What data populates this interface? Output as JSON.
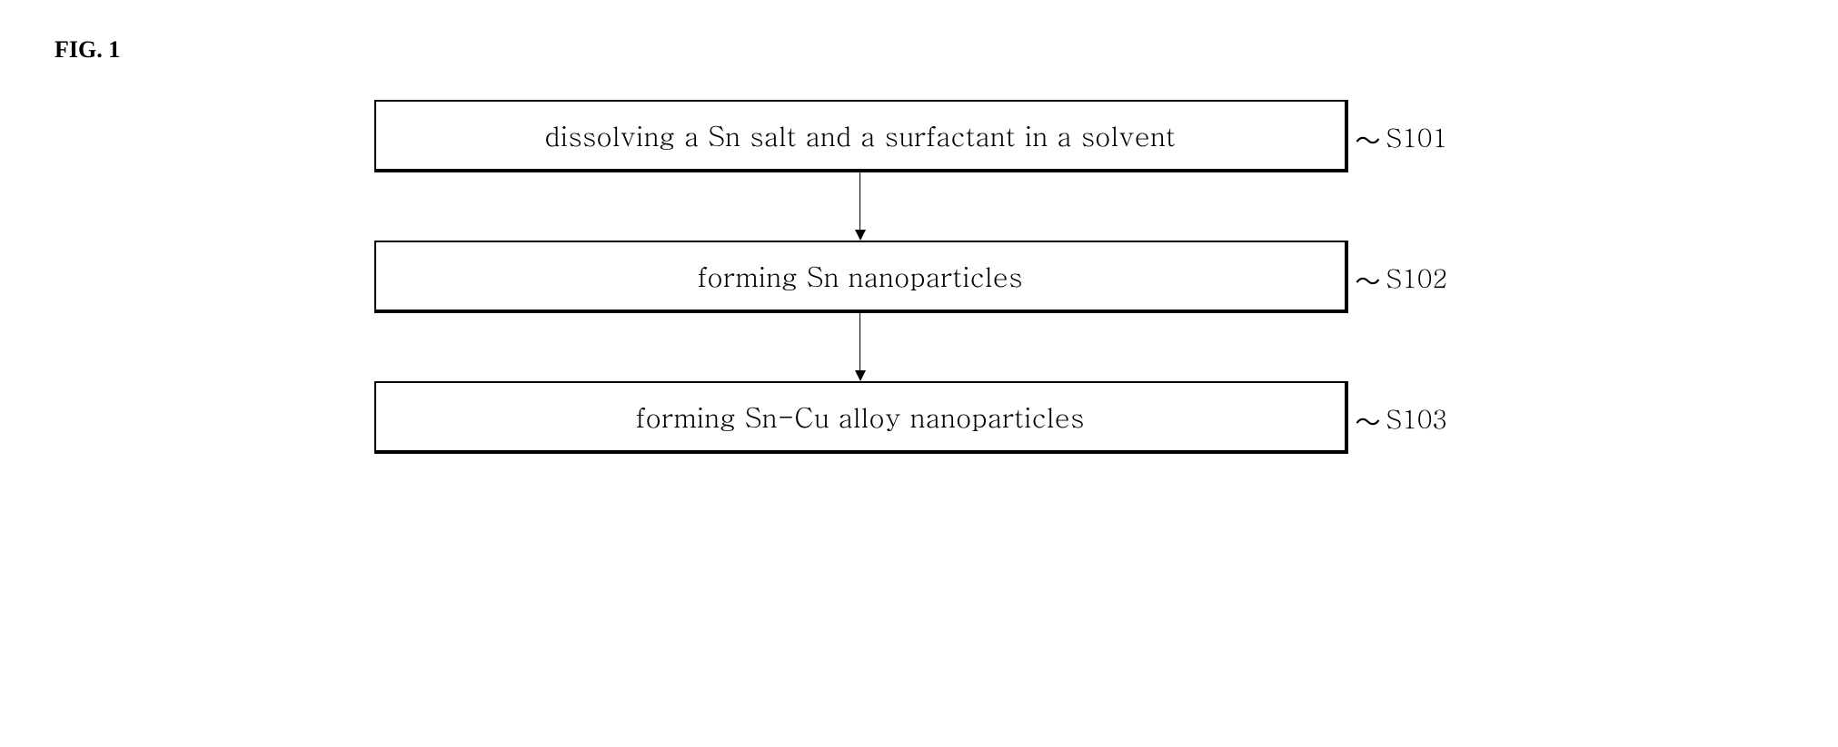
{
  "figure_label": "FIG. 1",
  "steps": [
    {
      "text": "dissolving a Sn salt and a surfactant in a solvent",
      "label": "S101"
    },
    {
      "text": "forming Sn nanoparticles",
      "label": "S102"
    },
    {
      "text": "forming Sn-Cu alloy nanoparticles",
      "label": "S103"
    }
  ],
  "styling": {
    "box_border_color": "#000000",
    "box_background": "#ffffff",
    "page_background": "#ffffff",
    "font_family_label": "Georgia, Times New Roman, serif",
    "font_family_box": "Batang, Georgia, Times New Roman, serif",
    "figure_label_fontsize": 26,
    "box_text_fontsize": 30,
    "step_label_fontsize": 28,
    "arrow_height": 75
  }
}
